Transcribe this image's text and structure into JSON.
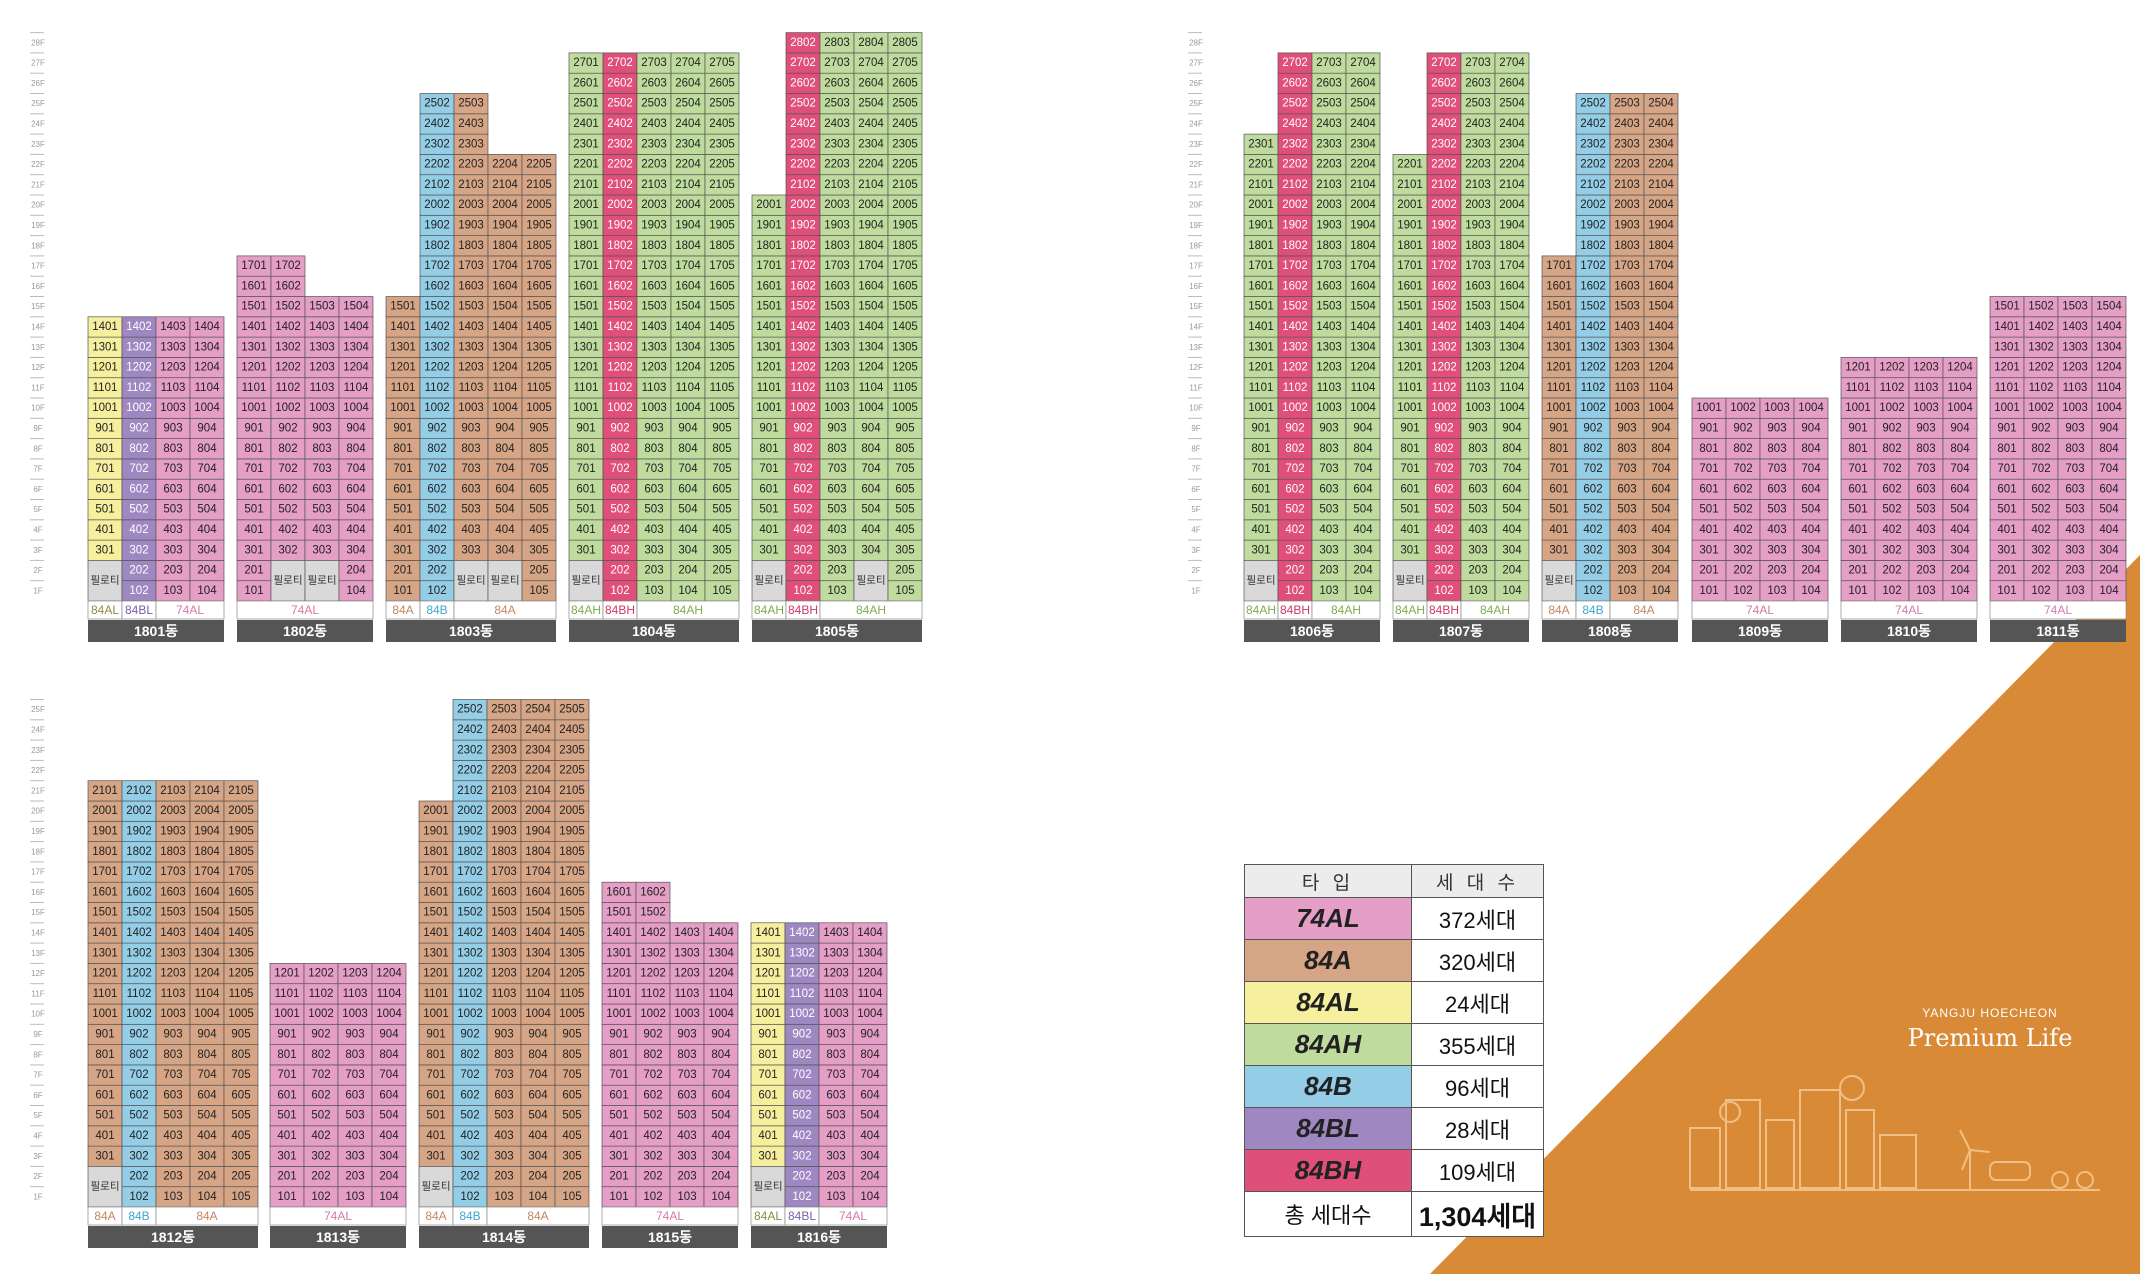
{
  "colors": {
    "74AL": "#e59ec6",
    "84A": "#d6a586",
    "84AL": "#f5ef9e",
    "84AH": "#bfdc9e",
    "84B": "#94cde6",
    "84BL": "#9f87c2",
    "84BH": "#df4f7a",
    "piloti": "#d9d9d9",
    "label_bar": "#555555",
    "orange": "#d98a37"
  },
  "piloti_label": "필로티",
  "floor_suffix": "F",
  "legend": {
    "header_type": "타 입",
    "header_count": "세 대 수",
    "rows": [
      {
        "type": "74AL",
        "count": "372세대"
      },
      {
        "type": "84A",
        "count": "320세대"
      },
      {
        "type": "84AL",
        "count": "24세대"
      },
      {
        "type": "84AH",
        "count": "355세대"
      },
      {
        "type": "84B",
        "count": "96세대"
      },
      {
        "type": "84BL",
        "count": "28세대"
      },
      {
        "type": "84BH",
        "count": "109세대"
      }
    ],
    "total_label": "총 세대수",
    "total_value": "1,304세대"
  },
  "brand": {
    "line1": "YANGJU HOECHEON",
    "line2": "Premium Life"
  },
  "buildings": [
    {
      "name": "1801동",
      "lines": [
        {
          "type": "84AL",
          "top": 14,
          "lowest": 3,
          "low": []
        },
        {
          "type": "84BL",
          "top": 14,
          "lowest": 1,
          "low": []
        },
        {
          "type": "74AL",
          "top": 14,
          "lowest": 1,
          "low": []
        },
        {
          "type": "74AL",
          "top": 14,
          "lowest": 1,
          "low": []
        }
      ],
      "labels": [
        {
          "text": "84AL",
          "type": "84AL",
          "span": 1
        },
        {
          "text": "84BL",
          "type": "84BL",
          "span": 1
        },
        {
          "text": "74AL",
          "type": "74AL",
          "span": 2
        }
      ]
    },
    {
      "name": "1802동",
      "lines": [
        {
          "type": "74AL",
          "top": 17,
          "lowest": 1,
          "low": []
        },
        {
          "type": "74AL",
          "top": 17,
          "lowest": 3,
          "low": []
        },
        {
          "type": "74AL",
          "top": 15,
          "lowest": 3,
          "low": []
        },
        {
          "type": "74AL",
          "top": 15,
          "lowest": 1,
          "low": []
        }
      ],
      "labels": [
        {
          "text": "74AL",
          "type": "74AL",
          "span": 4
        }
      ]
    },
    {
      "name": "1803동",
      "lines": [
        {
          "type": "84A",
          "top": 15,
          "lowest": 1,
          "low": []
        },
        {
          "type": "84B",
          "top": 25,
          "lowest": 1,
          "low": []
        },
        {
          "type": "84A",
          "top": 25,
          "lowest": 3,
          "low": []
        },
        {
          "type": "84A",
          "top": 22,
          "lowest": 3,
          "low": []
        },
        {
          "type": "84A",
          "top": 22,
          "lowest": 1,
          "low": []
        }
      ],
      "labels": [
        {
          "text": "84A",
          "type": "84A",
          "span": 1
        },
        {
          "text": "84B",
          "type": "84B",
          "span": 1
        },
        {
          "text": "84A",
          "type": "84A",
          "span": 3
        }
      ]
    },
    {
      "name": "1804동",
      "lines": [
        {
          "type": "84AH",
          "top": 27,
          "lowest": 3,
          "low": []
        },
        {
          "type": "84BH",
          "top": 27,
          "lowest": 1,
          "low": []
        },
        {
          "type": "84AH",
          "top": 27,
          "lowest": 1,
          "low": []
        },
        {
          "type": "84AH",
          "top": 27,
          "lowest": 1,
          "low": []
        },
        {
          "type": "84AH",
          "top": 27,
          "lowest": 1,
          "low": []
        }
      ],
      "labels": [
        {
          "text": "84AH",
          "type": "84AH",
          "span": 1
        },
        {
          "text": "84BH",
          "type": "84BH",
          "span": 1
        },
        {
          "text": "84AH",
          "type": "84AH",
          "span": 3
        }
      ]
    },
    {
      "name": "1805동",
      "lines": [
        {
          "type": "84AH",
          "top": 20,
          "lowest": 3,
          "low": []
        },
        {
          "type": "84BH",
          "top": 28,
          "lowest": 1,
          "low": []
        },
        {
          "type": "84AH",
          "top": 28,
          "lowest": 1,
          "low": []
        },
        {
          "type": "84AH",
          "top": 28,
          "lowest": 3,
          "low": []
        },
        {
          "type": "84AH",
          "top": 28,
          "lowest": 1,
          "low": []
        }
      ],
      "labels": [
        {
          "text": "84AH",
          "type": "84AH",
          "span": 1
        },
        {
          "text": "84BH",
          "type": "84BH",
          "span": 1
        },
        {
          "text": "84AH",
          "type": "84AH",
          "span": 3
        }
      ]
    },
    {
      "name": "1806동",
      "lines": [
        {
          "type": "84AH",
          "top": 23,
          "lowest": 3,
          "low": []
        },
        {
          "type": "84BH",
          "top": 27,
          "lowest": 1,
          "low": []
        },
        {
          "type": "84AH",
          "top": 27,
          "lowest": 1,
          "low": []
        },
        {
          "type": "84AH",
          "top": 27,
          "lowest": 1,
          "low": []
        }
      ],
      "labels": [
        {
          "text": "84AH",
          "type": "84AH",
          "span": 1
        },
        {
          "text": "84BH",
          "type": "84BH",
          "span": 1
        },
        {
          "text": "84AH",
          "type": "84AH",
          "span": 2
        }
      ]
    },
    {
      "name": "1807동",
      "lines": [
        {
          "type": "84AH",
          "top": 22,
          "lowest": 3,
          "low": []
        },
        {
          "type": "84BH",
          "top": 27,
          "lowest": 1,
          "low": []
        },
        {
          "type": "84AH",
          "top": 27,
          "lowest": 1,
          "low": []
        },
        {
          "type": "84AH",
          "top": 27,
          "lowest": 1,
          "low": []
        }
      ],
      "labels": [
        {
          "text": "84AH",
          "type": "84AH",
          "span": 1
        },
        {
          "text": "84BH",
          "type": "84BH",
          "span": 1
        },
        {
          "text": "84AH",
          "type": "84AH",
          "span": 2
        }
      ]
    },
    {
      "name": "1808동",
      "lines": [
        {
          "type": "84A",
          "top": 17,
          "lowest": 3,
          "low": []
        },
        {
          "type": "84B",
          "top": 25,
          "lowest": 1,
          "low": []
        },
        {
          "type": "84A",
          "top": 25,
          "lowest": 1,
          "low": []
        },
        {
          "type": "84A",
          "top": 25,
          "lowest": 1,
          "low": []
        }
      ],
      "labels": [
        {
          "text": "84A",
          "type": "84A",
          "span": 1
        },
        {
          "text": "84B",
          "type": "84B",
          "span": 1
        },
        {
          "text": "84A",
          "type": "84A",
          "span": 2
        }
      ]
    },
    {
      "name": "1809동",
      "lines": [
        {
          "type": "74AL",
          "top": 10,
          "lowest": 1,
          "low": []
        },
        {
          "type": "74AL",
          "top": 10,
          "lowest": 1,
          "low": []
        },
        {
          "type": "74AL",
          "top": 10,
          "lowest": 1,
          "low": []
        },
        {
          "type": "74AL",
          "top": 10,
          "lowest": 1,
          "low": []
        }
      ],
      "labels": [
        {
          "text": "74AL",
          "type": "74AL",
          "span": 4
        }
      ]
    },
    {
      "name": "1810동",
      "lines": [
        {
          "type": "74AL",
          "top": 12,
          "lowest": 1,
          "low": []
        },
        {
          "type": "74AL",
          "top": 12,
          "lowest": 1,
          "low": []
        },
        {
          "type": "74AL",
          "top": 12,
          "lowest": 1,
          "low": []
        },
        {
          "type": "74AL",
          "top": 12,
          "lowest": 1,
          "low": []
        }
      ],
      "labels": [
        {
          "text": "74AL",
          "type": "74AL",
          "span": 4
        }
      ]
    },
    {
      "name": "1811동",
      "lines": [
        {
          "type": "74AL",
          "top": 15,
          "lowest": 1,
          "low": []
        },
        {
          "type": "74AL",
          "top": 15,
          "lowest": 1,
          "low": []
        },
        {
          "type": "74AL",
          "top": 15,
          "lowest": 1,
          "low": []
        },
        {
          "type": "74AL",
          "top": 15,
          "lowest": 1,
          "low": []
        }
      ],
      "labels": [
        {
          "text": "74AL",
          "type": "74AL",
          "span": 4
        }
      ]
    },
    {
      "name": "1812동",
      "lines": [
        {
          "type": "84A",
          "top": 21,
          "lowest": 3,
          "low": []
        },
        {
          "type": "84B",
          "top": 21,
          "lowest": 1,
          "low": []
        },
        {
          "type": "84A",
          "top": 21,
          "lowest": 1,
          "low": []
        },
        {
          "type": "84A",
          "top": 21,
          "lowest": 1,
          "low": []
        },
        {
          "type": "84A",
          "top": 21,
          "lowest": 1,
          "low": []
        }
      ],
      "labels": [
        {
          "text": "84A",
          "type": "84A",
          "span": 1
        },
        {
          "text": "84B",
          "type": "84B",
          "span": 1
        },
        {
          "text": "84A",
          "type": "84A",
          "span": 3
        }
      ]
    },
    {
      "name": "1813동",
      "lines": [
        {
          "type": "74AL",
          "top": 12,
          "lowest": 1,
          "low": []
        },
        {
          "type": "74AL",
          "top": 12,
          "lowest": 1,
          "low": []
        },
        {
          "type": "74AL",
          "top": 12,
          "lowest": 1,
          "low": []
        },
        {
          "type": "74AL",
          "top": 12,
          "lowest": 1,
          "low": []
        }
      ],
      "labels": [
        {
          "text": "74AL",
          "type": "74AL",
          "span": 4
        }
      ]
    },
    {
      "name": "1814동",
      "lines": [
        {
          "type": "84A",
          "top": 20,
          "lowest": 3,
          "low": []
        },
        {
          "type": "84B",
          "top": 25,
          "lowest": 1,
          "low": []
        },
        {
          "type": "84A",
          "top": 25,
          "lowest": 1,
          "low": []
        },
        {
          "type": "84A",
          "top": 25,
          "lowest": 1,
          "low": []
        },
        {
          "type": "84A",
          "top": 25,
          "lowest": 1,
          "low": []
        }
      ],
      "labels": [
        {
          "text": "84A",
          "type": "84A",
          "span": 1
        },
        {
          "text": "84B",
          "type": "84B",
          "span": 1
        },
        {
          "text": "84A",
          "type": "84A",
          "span": 3
        }
      ]
    },
    {
      "name": "1815동",
      "lines": [
        {
          "type": "74AL",
          "top": 16,
          "lowest": 1,
          "low": []
        },
        {
          "type": "74AL",
          "top": 16,
          "lowest": 1,
          "low": []
        },
        {
          "type": "74AL",
          "top": 14,
          "lowest": 1,
          "low": []
        },
        {
          "type": "74AL",
          "top": 14,
          "lowest": 1,
          "low": []
        }
      ],
      "labels": [
        {
          "text": "74AL",
          "type": "74AL",
          "span": 4
        }
      ]
    },
    {
      "name": "1816동",
      "lines": [
        {
          "type": "84AL",
          "top": 14,
          "lowest": 3,
          "low": []
        },
        {
          "type": "84BL",
          "top": 14,
          "lowest": 1,
          "low": []
        },
        {
          "type": "74AL",
          "top": 14,
          "lowest": 1,
          "low": []
        },
        {
          "type": "74AL",
          "top": 14,
          "lowest": 1,
          "low": []
        }
      ],
      "labels": [
        {
          "text": "84AL",
          "type": "84AL",
          "span": 1
        },
        {
          "text": "84BL",
          "type": "84BL",
          "span": 1
        },
        {
          "text": "74AL",
          "type": "74AL",
          "span": 2
        }
      ]
    }
  ]
}
